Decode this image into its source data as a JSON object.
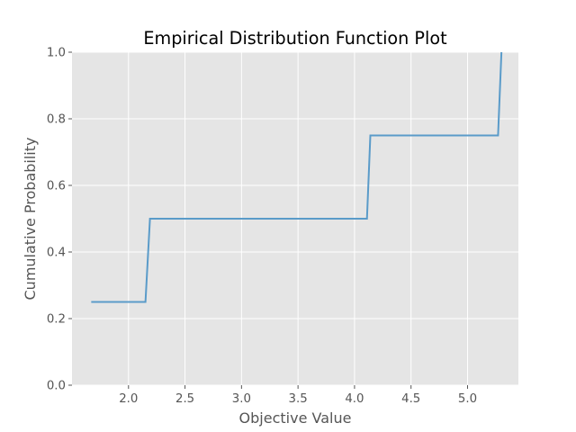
{
  "chart_data": {
    "type": "line",
    "title": "Empirical Distribution Function Plot",
    "xlabel": "Objective Value",
    "ylabel": "Cumulative Probability",
    "xlim": [
      1.5,
      5.45
    ],
    "ylim": [
      0.0,
      1.0
    ],
    "xticks": [
      2.0,
      2.5,
      3.0,
      3.5,
      4.0,
      4.5,
      5.0
    ],
    "xtick_labels": [
      "2.0",
      "2.5",
      "3.0",
      "3.5",
      "4.0",
      "4.5",
      "5.0"
    ],
    "yticks": [
      0.0,
      0.2,
      0.4,
      0.6,
      0.8,
      1.0
    ],
    "ytick_labels": [
      "0.0",
      "0.2",
      "0.4",
      "0.6",
      "0.8",
      "1.0"
    ],
    "grid": true,
    "series": [
      {
        "color": "#5a9bc9",
        "x": [
          1.67,
          2.15,
          2.19,
          4.11,
          4.14,
          5.27,
          5.3
        ],
        "y": [
          0.25,
          0.25,
          0.5,
          0.5,
          0.75,
          0.75,
          1.0
        ]
      }
    ]
  },
  "style": {
    "plot_background": "#e5e5e5",
    "grid_color": "#ffffff"
  }
}
